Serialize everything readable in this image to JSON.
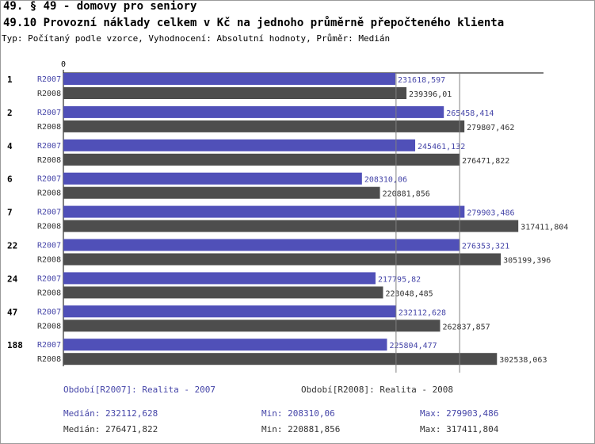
{
  "header": {
    "title_line1": "49. § 49 - domovy pro seniory",
    "title_line2": "49.10 Provozní náklady celkem v Kč na jednoho průměrně přepočteného klienta",
    "subtitle": "Typ: Počítaný podle vzorce, Vyhodnocení: Absolutní hodnoty, Průměr: Medián"
  },
  "colors": {
    "r2007": "#5050b8",
    "r2008": "#4d4d4d",
    "label2007": "#4545a8",
    "label2008": "#333333",
    "grid": "#808080"
  },
  "chart_data": {
    "type": "bar",
    "orientation": "horizontal",
    "categories": [
      "1",
      "2",
      "4",
      "6",
      "7",
      "22",
      "24",
      "47",
      "188"
    ],
    "series": [
      {
        "name": "R2007",
        "values": [
          231618.597,
          265458.414,
          245461.132,
          208310.06,
          279903.486,
          276353.321,
          217795.82,
          232112.628,
          225804.477
        ],
        "labels": [
          "231618,597",
          "265458,414",
          "245461,132",
          "208310,06",
          "279903,486",
          "276353,321",
          "217795,82",
          "232112,628",
          "225804,477"
        ]
      },
      {
        "name": "R2008",
        "values": [
          239396.01,
          279807.462,
          276471.822,
          220881.856,
          317411.804,
          305199.396,
          223048.485,
          262837.857,
          302538.063
        ],
        "labels": [
          "239396,01",
          "279807,462",
          "276471,822",
          "220881,856",
          "317411,804",
          "305199,396",
          "223048,485",
          "262837,857",
          "302538,063"
        ]
      }
    ],
    "x_axis_label": "0",
    "xlim": [
      0,
      335000
    ],
    "reference_lines": [
      232112.628,
      276471.822
    ],
    "grid": false,
    "legend_position": "bottom"
  },
  "footer": {
    "period2007": "Období[R2007]: Realita - 2007",
    "period2008": "Období[R2008]: Realita - 2008",
    "median2007": "Medián: 232112,628",
    "min2007": "Min: 208310,06",
    "max2007": "Max: 279903,486",
    "median2008": "Medián: 276471,822",
    "min2008": "Min: 220881,856",
    "max2008": "Max: 317411,804"
  }
}
